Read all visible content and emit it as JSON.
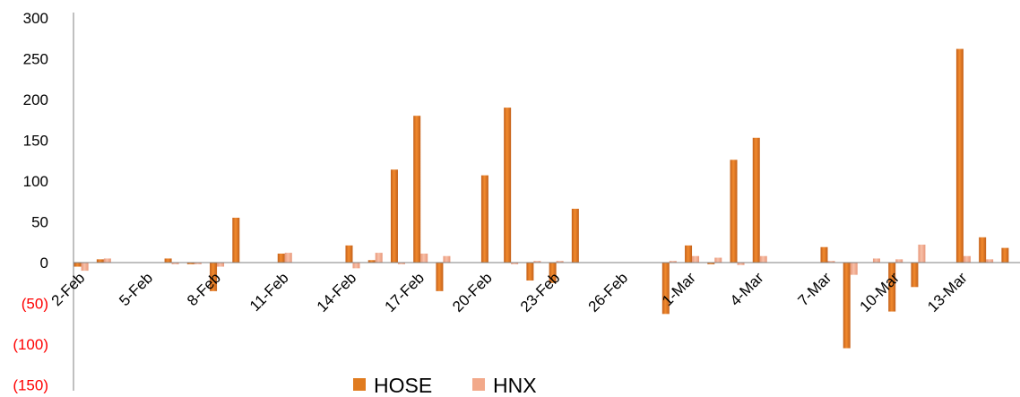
{
  "chart_data": {
    "type": "bar",
    "ylim": [
      -150,
      300
    ],
    "y_ticks": [
      300,
      250,
      200,
      150,
      100,
      50,
      0,
      -50,
      -100,
      -150
    ],
    "y_tick_labels": [
      "300",
      "250",
      "200",
      "150",
      "100",
      "50",
      "0",
      "(50)",
      "(100)",
      "(150)"
    ],
    "x_tick_labels": [
      "2-Feb",
      "5-Feb",
      "8-Feb",
      "11-Feb",
      "14-Feb",
      "17-Feb",
      "20-Feb",
      "23-Feb",
      "26-Feb",
      "1-Mar",
      "4-Mar",
      "7-Mar",
      "10-Mar",
      "13-Mar"
    ],
    "categories": [
      "2-Feb",
      "3-Feb",
      "4-Feb",
      "5-Feb",
      "6-Feb",
      "7-Feb",
      "8-Feb",
      "9-Feb",
      "10-Feb",
      "11-Feb",
      "12-Feb",
      "13-Feb",
      "14-Feb",
      "15-Feb",
      "16-Feb",
      "17-Feb",
      "18-Feb",
      "19-Feb",
      "20-Feb",
      "21-Feb",
      "22-Feb",
      "23-Feb",
      "24-Feb",
      "25-Feb",
      "26-Feb",
      "27-Feb",
      "28-Feb",
      "1-Mar",
      "2-Mar",
      "3-Mar",
      "4-Mar",
      "5-Mar",
      "6-Mar",
      "7-Mar",
      "8-Mar",
      "9-Mar",
      "10-Mar",
      "11-Mar",
      "12-Mar",
      "13-Mar",
      "14-Mar",
      "15-Mar"
    ],
    "series": [
      {
        "name": "HOSE",
        "color": "#E07B1F",
        "values": [
          -5,
          4,
          null,
          null,
          5,
          -2,
          -35,
          55,
          null,
          11,
          null,
          null,
          21,
          3,
          114,
          180,
          -35,
          null,
          107,
          190,
          -22,
          -25,
          66,
          null,
          null,
          null,
          -63,
          21,
          -2,
          126,
          153,
          null,
          null,
          19,
          -105,
          null,
          -60,
          -30,
          null,
          262,
          31,
          18
        ]
      },
      {
        "name": "HNX",
        "color": "#F2A98A",
        "values": [
          -10,
          5,
          null,
          null,
          -2,
          -2,
          -5,
          null,
          null,
          12,
          null,
          null,
          -7,
          12,
          -2,
          11,
          8,
          null,
          null,
          -2,
          2,
          2,
          null,
          null,
          null,
          null,
          2,
          8,
          6,
          -3,
          8,
          null,
          null,
          2,
          -15,
          5,
          4,
          22,
          null,
          8,
          4,
          null
        ]
      }
    ],
    "legend": {
      "position": "bottom"
    },
    "grid": false,
    "colors": {
      "axis": "#808080",
      "negative_tick": "#FF0000",
      "positive_tick": "#000000"
    }
  }
}
